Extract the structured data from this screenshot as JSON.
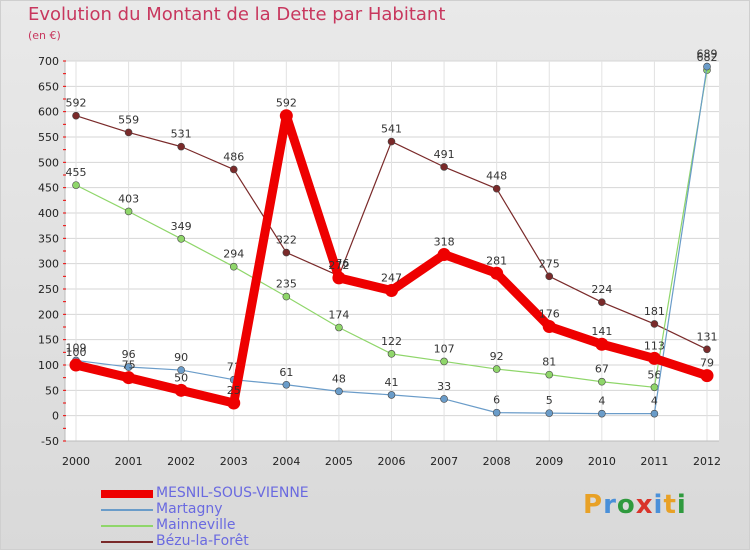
{
  "header": {
    "title": "Evolution du Montant de la Dette par Habitant",
    "unit": "(en €)"
  },
  "logo": {
    "text": "Proxiti",
    "colors": [
      "#e8a126",
      "#4a90d9",
      "#2f9a3e",
      "#d9342b",
      "#4a90d9",
      "#e8a126",
      "#2f9a3e"
    ]
  },
  "chart_data": {
    "type": "line",
    "title": "Evolution du Montant de la Dette par Habitant",
    "ylabel": "(en €)",
    "xlabel": "",
    "x": [
      "2000",
      "2001",
      "2002",
      "2003",
      "2004",
      "2005",
      "2006",
      "2007",
      "2008",
      "2009",
      "2010",
      "2011",
      "2012"
    ],
    "ylim": [
      -50,
      700
    ],
    "yticks": [
      -50,
      0,
      50,
      100,
      150,
      200,
      250,
      300,
      350,
      400,
      450,
      500,
      550,
      600,
      650,
      700
    ],
    "grid": true,
    "legend": "bottom-left",
    "series": [
      {
        "name": "Bézu-la-Forêt",
        "color": "#7a2a2a",
        "width": 1.2,
        "values": [
          592,
          559,
          531,
          486,
          322,
          276,
          541,
          491,
          448,
          275,
          224,
          181,
          131
        ],
        "labels": [
          "592",
          "559",
          "531",
          "486",
          "322",
          "276",
          "541",
          "491",
          "448",
          "275",
          "224",
          "181",
          "131"
        ]
      },
      {
        "name": "Mainneville",
        "color": "#8fd66a",
        "width": 1.2,
        "values": [
          455,
          403,
          349,
          294,
          235,
          174,
          122,
          107,
          92,
          81,
          67,
          56,
          682
        ],
        "labels": [
          "455",
          "403",
          "349",
          "294",
          "235",
          "174",
          "122",
          "107",
          "92",
          "81",
          "67",
          "56",
          "682"
        ]
      },
      {
        "name": "Martagny",
        "color": "#6a9cc9",
        "width": 1.2,
        "values": [
          109,
          96,
          90,
          71,
          61,
          48,
          41,
          33,
          6,
          5,
          4,
          4,
          689
        ],
        "labels": [
          "109",
          "96",
          "90",
          "71",
          "61",
          "48",
          "41",
          "33",
          "6",
          "5",
          "4",
          "4",
          "689"
        ]
      },
      {
        "name": "MESNIL-SOUS-VIENNE",
        "color": "#ee0000",
        "width": 9,
        "values": [
          100,
          75,
          50,
          25,
          592,
          272,
          247,
          318,
          281,
          176,
          141,
          113,
          79
        ],
        "labels": [
          "100",
          "75",
          "50",
          "25",
          "592",
          "272",
          "247",
          "318",
          "281",
          "176",
          "141",
          "113",
          "79"
        ]
      }
    ]
  }
}
